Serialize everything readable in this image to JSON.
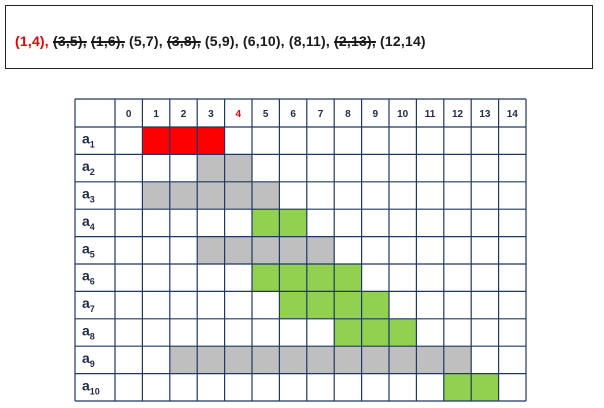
{
  "sequence": [
    {
      "text": "(1,4),",
      "style": "first"
    },
    {
      "text": "(3,5),",
      "style": "struck"
    },
    {
      "text": "(1,6),",
      "style": "struck"
    },
    {
      "text": "(5,7),",
      "style": "normal"
    },
    {
      "text": "(3,8),",
      "style": "struck"
    },
    {
      "text": "(5,9),",
      "style": "normal"
    },
    {
      "text": "(6,10),",
      "style": "normal"
    },
    {
      "text": "(8,11),",
      "style": "normal"
    },
    {
      "text": "(2,13),",
      "style": "struck"
    },
    {
      "text": "(12,14)",
      "style": "normal"
    }
  ],
  "grid": {
    "columns": [
      "0",
      "1",
      "2",
      "3",
      "4",
      "5",
      "6",
      "7",
      "8",
      "9",
      "10",
      "11",
      "12",
      "13",
      "14"
    ],
    "highlight_column": "4",
    "rows": [
      {
        "letter": "a",
        "sub": "1",
        "start": 1,
        "end": 4,
        "color": "red"
      },
      {
        "letter": "a",
        "sub": "2",
        "start": 3,
        "end": 5,
        "color": "gray"
      },
      {
        "letter": "a",
        "sub": "3",
        "start": 1,
        "end": 6,
        "color": "gray"
      },
      {
        "letter": "a",
        "sub": "4",
        "start": 5,
        "end": 7,
        "color": "green"
      },
      {
        "letter": "a",
        "sub": "5",
        "start": 3,
        "end": 8,
        "color": "gray"
      },
      {
        "letter": "a",
        "sub": "6",
        "start": 5,
        "end": 9,
        "color": "green"
      },
      {
        "letter": "a",
        "sub": "7",
        "start": 6,
        "end": 10,
        "color": "green"
      },
      {
        "letter": "a",
        "sub": "8",
        "start": 8,
        "end": 11,
        "color": "green"
      },
      {
        "letter": "a",
        "sub": "9",
        "start": 2,
        "end": 13,
        "color": "gray"
      },
      {
        "letter": "a",
        "sub": "10",
        "start": 12,
        "end": 14,
        "color": "green"
      }
    ]
  },
  "colors": {
    "red": "#ff0000",
    "gray": "#bfbfbf",
    "green": "#92d050",
    "grid_line": "#1f3864",
    "header_highlight": "#e60000"
  }
}
